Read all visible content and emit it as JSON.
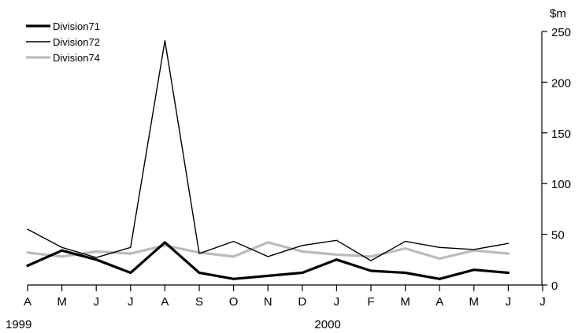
{
  "chart_data": {
    "type": "line",
    "ylabel": "$m",
    "ylim": [
      0,
      250
    ],
    "yticks": [
      0,
      50,
      100,
      150,
      200,
      250
    ],
    "ytick_labels": [
      "0",
      "50",
      "100",
      "150",
      "200",
      "250"
    ],
    "axis_side": "right",
    "grid": false,
    "legend_position": "top-left",
    "categories": [
      "A",
      "M",
      "J",
      "J",
      "A",
      "S",
      "O",
      "N",
      "D",
      "J",
      "F",
      "M",
      "A",
      "M",
      "J"
    ],
    "extra_tick_label": "J",
    "year_labels": [
      {
        "label": "1999",
        "at_index": 0
      },
      {
        "label": "2000",
        "at_index": 9
      }
    ],
    "series": [
      {
        "name": "Division71",
        "color": "#000000",
        "width": "thick",
        "values": [
          19,
          34,
          25,
          12,
          42,
          12,
          6,
          9,
          12,
          25,
          14,
          12,
          6,
          15,
          12
        ]
      },
      {
        "name": "Division72",
        "color": "#000000",
        "width": "thin",
        "values": [
          55,
          37,
          27,
          37,
          241,
          31,
          43,
          28,
          39,
          44,
          24,
          43,
          37,
          35,
          41
        ]
      },
      {
        "name": "Division74",
        "color": "#bbbbbb",
        "width": "thick",
        "values": [
          32,
          28,
          33,
          31,
          39,
          32,
          28,
          42,
          33,
          30,
          28,
          36,
          26,
          34,
          31
        ]
      }
    ]
  }
}
